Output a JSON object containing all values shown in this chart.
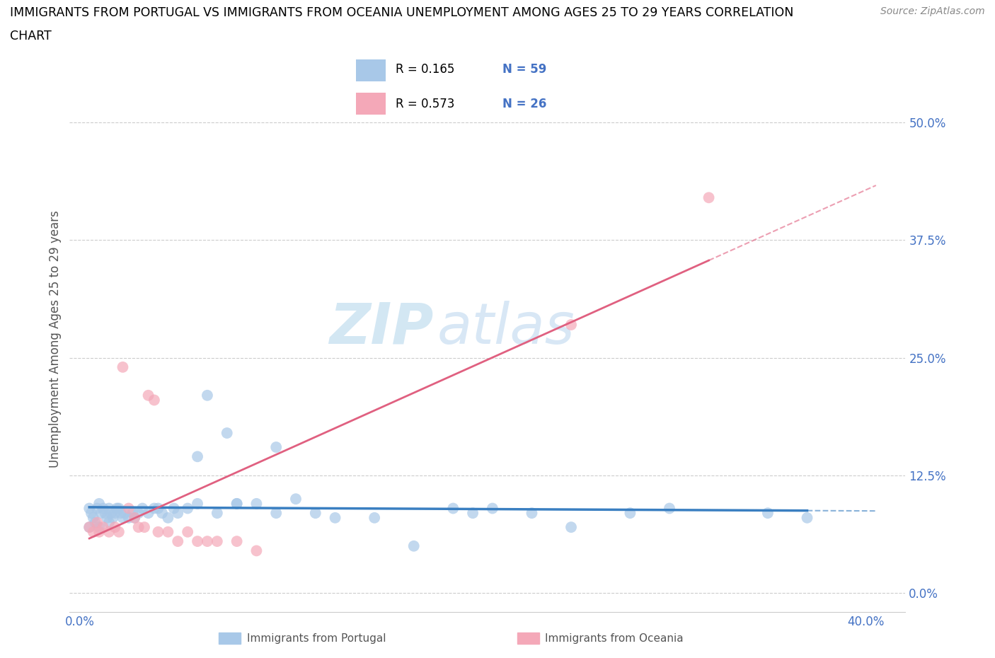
{
  "title_line1": "IMMIGRANTS FROM PORTUGAL VS IMMIGRANTS FROM OCEANIA UNEMPLOYMENT AMONG AGES 25 TO 29 YEARS CORRELATION",
  "title_line2": "CHART",
  "source": "Source: ZipAtlas.com",
  "ylabel": "Unemployment Among Ages 25 to 29 years",
  "xlim": [
    -0.005,
    0.42
  ],
  "ylim": [
    -0.02,
    0.56
  ],
  "yticks": [
    0.0,
    0.125,
    0.25,
    0.375,
    0.5
  ],
  "xticks": [
    0.0,
    0.1,
    0.2,
    0.3,
    0.4
  ],
  "portugal_color": "#a8c8e8",
  "portugal_line_color": "#3a7fc1",
  "oceania_color": "#f4a8b8",
  "oceania_line_color": "#e06080",
  "portugal_R": 0.165,
  "portugal_N": 59,
  "oceania_R": 0.573,
  "oceania_N": 26,
  "watermark_zip": "ZIP",
  "watermark_atlas": "atlas",
  "legend_label1": "Immigrants from Portugal",
  "legend_label2": "Immigrants from Oceania",
  "portugal_x": [
    0.005,
    0.005,
    0.006,
    0.007,
    0.008,
    0.009,
    0.01,
    0.01,
    0.011,
    0.012,
    0.013,
    0.014,
    0.015,
    0.015,
    0.016,
    0.017,
    0.018,
    0.019,
    0.02,
    0.021,
    0.022,
    0.023,
    0.025,
    0.027,
    0.028,
    0.03,
    0.032,
    0.035,
    0.038,
    0.04,
    0.042,
    0.045,
    0.048,
    0.05,
    0.055,
    0.06,
    0.065,
    0.07,
    0.075,
    0.08,
    0.09,
    0.1,
    0.11,
    0.12,
    0.13,
    0.15,
    0.17,
    0.19,
    0.21,
    0.23,
    0.25,
    0.28,
    0.3,
    0.35,
    0.37,
    0.06,
    0.08,
    0.1,
    0.2
  ],
  "portugal_y": [
    0.09,
    0.07,
    0.085,
    0.08,
    0.075,
    0.09,
    0.095,
    0.07,
    0.085,
    0.09,
    0.085,
    0.08,
    0.09,
    0.075,
    0.085,
    0.08,
    0.085,
    0.09,
    0.09,
    0.085,
    0.08,
    0.085,
    0.08,
    0.085,
    0.08,
    0.085,
    0.09,
    0.085,
    0.09,
    0.09,
    0.085,
    0.08,
    0.09,
    0.085,
    0.09,
    0.095,
    0.21,
    0.085,
    0.17,
    0.095,
    0.095,
    0.085,
    0.1,
    0.085,
    0.08,
    0.08,
    0.05,
    0.09,
    0.09,
    0.085,
    0.07,
    0.085,
    0.09,
    0.085,
    0.08,
    0.145,
    0.095,
    0.155,
    0.085
  ],
  "oceania_x": [
    0.005,
    0.007,
    0.009,
    0.01,
    0.012,
    0.015,
    0.018,
    0.02,
    0.022,
    0.025,
    0.028,
    0.03,
    0.033,
    0.035,
    0.038,
    0.04,
    0.045,
    0.05,
    0.055,
    0.06,
    0.065,
    0.07,
    0.08,
    0.09,
    0.32,
    0.25
  ],
  "oceania_y": [
    0.07,
    0.065,
    0.075,
    0.065,
    0.07,
    0.065,
    0.07,
    0.065,
    0.24,
    0.09,
    0.08,
    0.07,
    0.07,
    0.21,
    0.205,
    0.065,
    0.065,
    0.055,
    0.065,
    0.055,
    0.055,
    0.055,
    0.055,
    0.045,
    0.42,
    0.285
  ]
}
